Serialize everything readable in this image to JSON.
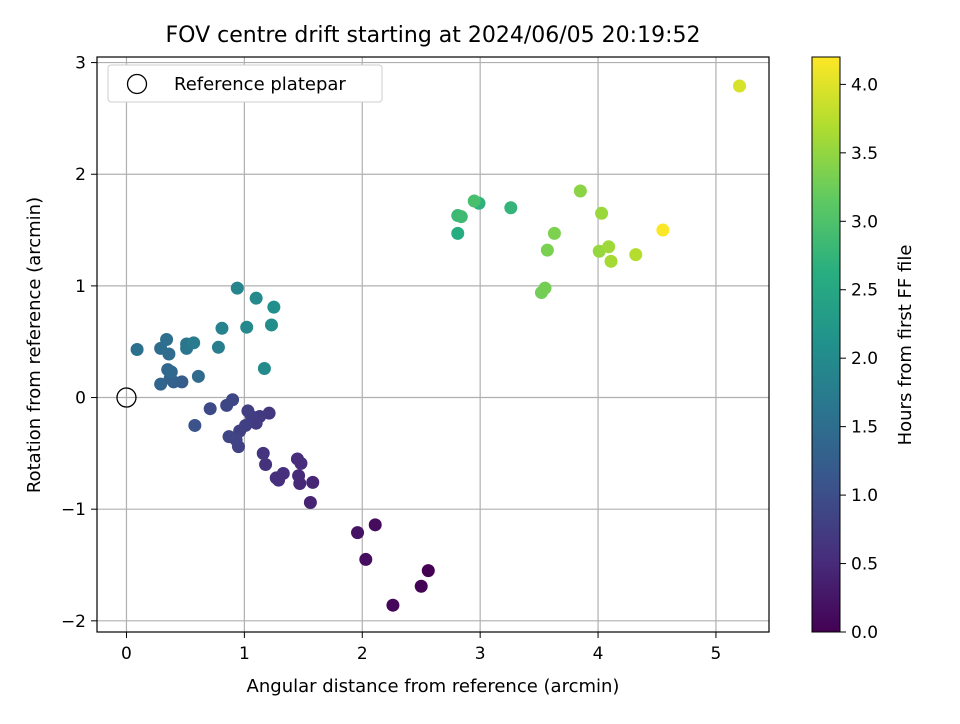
{
  "chart_data": {
    "type": "scatter",
    "title": "FOV centre drift starting at 2024/06/05 20:19:52",
    "xlabel": "Angular distance from reference (arcmin)",
    "ylabel": "Rotation from reference (arcmin)",
    "xlim": [
      -0.25,
      5.45
    ],
    "ylim": [
      -2.1,
      3.05
    ],
    "xticks": [
      0,
      1,
      2,
      3,
      4,
      5
    ],
    "yticks": [
      -2,
      -1,
      0,
      1,
      2,
      3
    ],
    "grid": true,
    "legend": {
      "placement": "top-left",
      "entries": [
        "Reference platepar"
      ]
    },
    "reference_point": {
      "x": 0,
      "y": 0,
      "label": "Reference platepar"
    },
    "colorbar": {
      "label": "Hours from first FF file",
      "colormap": "viridis",
      "range": [
        0,
        4.2
      ],
      "ticks": [
        "0.0",
        "0.5",
        "1.0",
        "1.5",
        "2.0",
        "2.5",
        "3.0",
        "3.5",
        "4.0"
      ]
    },
    "points": [
      {
        "x": 2.56,
        "y": -1.55,
        "c": 0.0
      },
      {
        "x": 2.5,
        "y": -1.69,
        "c": 0.03
      },
      {
        "x": 2.26,
        "y": -1.86,
        "c": 0.07
      },
      {
        "x": 2.11,
        "y": -1.14,
        "c": 0.12
      },
      {
        "x": 2.03,
        "y": -1.45,
        "c": 0.16
      },
      {
        "x": 1.96,
        "y": -1.21,
        "c": 0.22
      },
      {
        "x": 1.56,
        "y": -0.94,
        "c": 0.42
      },
      {
        "x": 1.58,
        "y": -0.76,
        "c": 0.45
      },
      {
        "x": 1.47,
        "y": -0.77,
        "c": 0.48
      },
      {
        "x": 1.46,
        "y": -0.7,
        "c": 0.5
      },
      {
        "x": 1.48,
        "y": -0.59,
        "c": 0.52
      },
      {
        "x": 1.45,
        "y": -0.55,
        "c": 0.53
      },
      {
        "x": 1.33,
        "y": -0.68,
        "c": 0.55
      },
      {
        "x": 1.29,
        "y": -0.74,
        "c": 0.56
      },
      {
        "x": 1.27,
        "y": -0.72,
        "c": 0.57
      },
      {
        "x": 1.18,
        "y": -0.6,
        "c": 0.6
      },
      {
        "x": 1.16,
        "y": -0.5,
        "c": 0.62
      },
      {
        "x": 1.21,
        "y": -0.14,
        "c": 0.68
      },
      {
        "x": 1.13,
        "y": -0.17,
        "c": 0.7
      },
      {
        "x": 1.1,
        "y": -0.23,
        "c": 0.72
      },
      {
        "x": 1.06,
        "y": -0.17,
        "c": 0.74
      },
      {
        "x": 1.03,
        "y": -0.12,
        "c": 0.76
      },
      {
        "x": 1.01,
        "y": -0.25,
        "c": 0.78
      },
      {
        "x": 0.96,
        "y": -0.3,
        "c": 0.8
      },
      {
        "x": 0.95,
        "y": -0.44,
        "c": 0.82
      },
      {
        "x": 0.93,
        "y": -0.38,
        "c": 0.84
      },
      {
        "x": 0.87,
        "y": -0.35,
        "c": 0.86
      },
      {
        "x": 0.9,
        "y": -0.02,
        "c": 0.88
      },
      {
        "x": 0.85,
        "y": -0.07,
        "c": 0.9
      },
      {
        "x": 0.71,
        "y": -0.1,
        "c": 0.93
      },
      {
        "x": 0.58,
        "y": -0.25,
        "c": 1.05
      },
      {
        "x": 0.47,
        "y": 0.14,
        "c": 1.22
      },
      {
        "x": 0.4,
        "y": 0.14,
        "c": 1.28
      },
      {
        "x": 0.37,
        "y": 0.17,
        "c": 1.32
      },
      {
        "x": 0.29,
        "y": 0.12,
        "c": 1.36
      },
      {
        "x": 0.35,
        "y": 0.25,
        "c": 1.4
      },
      {
        "x": 0.38,
        "y": 0.23,
        "c": 1.42
      },
      {
        "x": 0.61,
        "y": 0.19,
        "c": 1.45
      },
      {
        "x": 0.36,
        "y": 0.39,
        "c": 1.47
      },
      {
        "x": 0.29,
        "y": 0.44,
        "c": 1.5
      },
      {
        "x": 0.34,
        "y": 0.52,
        "c": 1.52
      },
      {
        "x": 0.09,
        "y": 0.43,
        "c": 1.55
      },
      {
        "x": 0.51,
        "y": 0.44,
        "c": 1.62
      },
      {
        "x": 0.51,
        "y": 0.48,
        "c": 1.64
      },
      {
        "x": 0.57,
        "y": 0.49,
        "c": 1.75
      },
      {
        "x": 0.78,
        "y": 0.45,
        "c": 1.78
      },
      {
        "x": 0.81,
        "y": 0.62,
        "c": 1.85
      },
      {
        "x": 0.94,
        "y": 0.98,
        "c": 1.9
      },
      {
        "x": 1.02,
        "y": 0.63,
        "c": 1.95
      },
      {
        "x": 1.1,
        "y": 0.89,
        "c": 1.98
      },
      {
        "x": 1.17,
        "y": 0.26,
        "c": 2.0
      },
      {
        "x": 1.23,
        "y": 0.65,
        "c": 2.05
      },
      {
        "x": 1.25,
        "y": 0.81,
        "c": 2.08
      },
      {
        "x": 2.81,
        "y": 1.47,
        "c": 2.58
      },
      {
        "x": 2.99,
        "y": 1.74,
        "c": 2.68
      },
      {
        "x": 3.26,
        "y": 1.7,
        "c": 2.75
      },
      {
        "x": 2.81,
        "y": 1.63,
        "c": 2.82
      },
      {
        "x": 2.84,
        "y": 1.62,
        "c": 2.86
      },
      {
        "x": 2.95,
        "y": 1.76,
        "c": 2.95
      },
      {
        "x": 3.52,
        "y": 0.94,
        "c": 3.28
      },
      {
        "x": 3.55,
        "y": 0.98,
        "c": 3.3
      },
      {
        "x": 3.57,
        "y": 1.32,
        "c": 3.33
      },
      {
        "x": 3.63,
        "y": 1.47,
        "c": 3.36
      },
      {
        "x": 3.85,
        "y": 1.85,
        "c": 3.45
      },
      {
        "x": 4.01,
        "y": 1.31,
        "c": 3.52
      },
      {
        "x": 4.03,
        "y": 1.65,
        "c": 3.55
      },
      {
        "x": 4.09,
        "y": 1.35,
        "c": 3.58
      },
      {
        "x": 4.11,
        "y": 1.22,
        "c": 3.62
      },
      {
        "x": 4.32,
        "y": 1.28,
        "c": 3.72
      },
      {
        "x": 4.55,
        "y": 1.5,
        "c": 4.18
      },
      {
        "x": 5.2,
        "y": 2.79,
        "c": 3.95
      }
    ]
  }
}
